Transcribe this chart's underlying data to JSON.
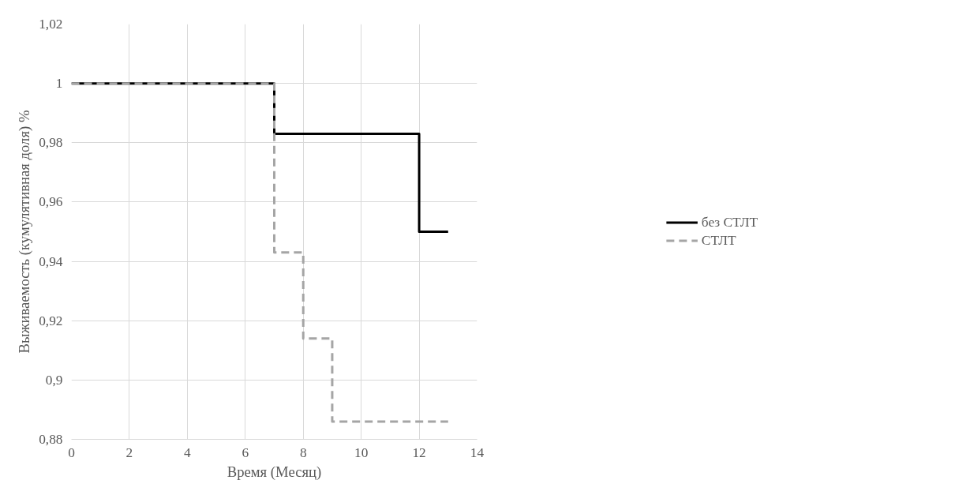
{
  "chart_data": {
    "type": "step",
    "xlabel": "Время (Месяц)",
    "ylabel": "Выживаемость (кумулятивная доля) %",
    "series": [
      {
        "name": "без СТЛТ",
        "color": "#000000",
        "line_style": "solid",
        "x": [
          0,
          7,
          12,
          13
        ],
        "values": [
          1,
          0.983,
          0.95,
          0.95
        ]
      },
      {
        "name": "СТЛТ",
        "color": "#a5a5a5",
        "line_style": "dashed",
        "x": [
          0,
          7,
          8,
          9,
          13
        ],
        "values": [
          1,
          0.943,
          0.914,
          0.886,
          0.886
        ]
      }
    ],
    "xlim": [
      0,
      14
    ],
    "xticks": [
      0,
      2,
      4,
      6,
      8,
      10,
      12,
      14
    ],
    "ylim": [
      0.88,
      1.02
    ],
    "yticks": [
      {
        "value": 0.88,
        "label": "0,88"
      },
      {
        "value": 0.9,
        "label": "0,9"
      },
      {
        "value": 0.92,
        "label": "0,92"
      },
      {
        "value": 0.94,
        "label": "0,94"
      },
      {
        "value": 0.96,
        "label": "0,96"
      },
      {
        "value": 0.98,
        "label": "0,98"
      },
      1,
      {
        "value": 1.02,
        "label": "1,02"
      }
    ],
    "grid": true,
    "legend": "right"
  }
}
